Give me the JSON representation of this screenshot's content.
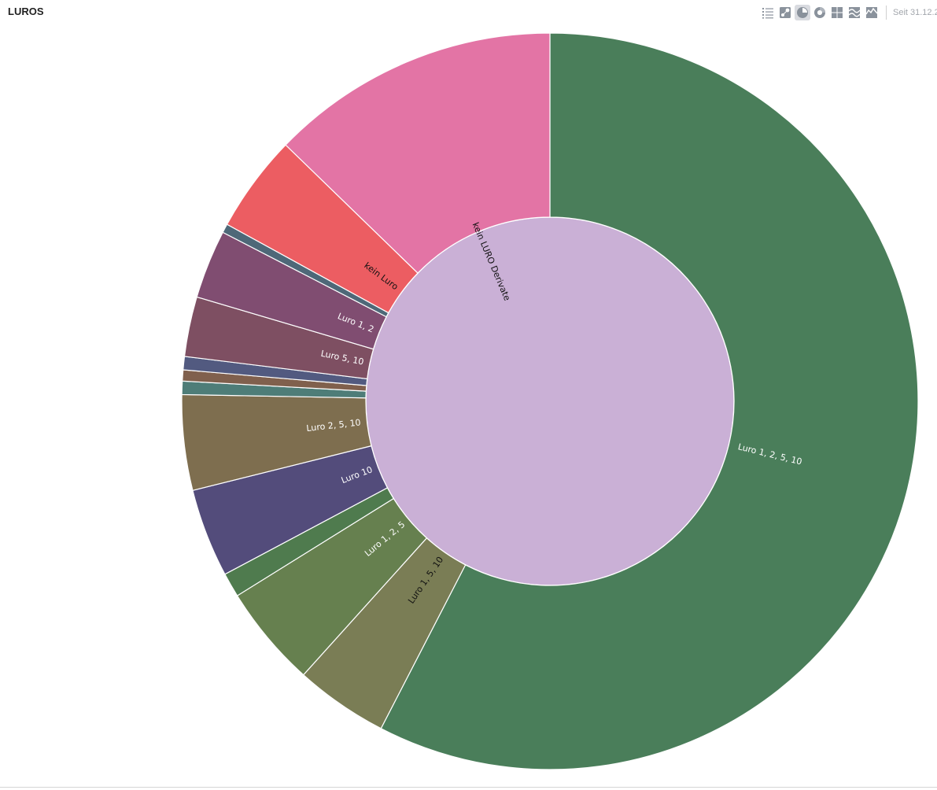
{
  "header": {
    "title": "LUROS",
    "since": "Seit 31.12.2",
    "toolbar": [
      {
        "icon": "list-icon",
        "active": false
      },
      {
        "icon": "scatter-icon",
        "active": false
      },
      {
        "icon": "pie-chart-icon",
        "active": true
      },
      {
        "icon": "donut-chart-icon",
        "active": false
      },
      {
        "icon": "treemap-icon",
        "active": false
      },
      {
        "icon": "stream-chart-icon",
        "active": false
      },
      {
        "icon": "area-chart-icon",
        "active": false
      }
    ]
  },
  "chart_data": {
    "type": "pie",
    "subtype": "sunburst",
    "inner_ring": [
      {
        "name": "",
        "value": 100,
        "color": "#cab0d6"
      }
    ],
    "outer_ring": [
      {
        "name": "Luro 1, 2, 5, 10",
        "value": 59.2,
        "color": "#4a7e5a",
        "label_color": "#ffffff"
      },
      {
        "name": "Luro 1, 5, 10",
        "value": 4.2,
        "color": "#7a7d55",
        "label_color": "#111111"
      },
      {
        "name": "Luro 1, 2, 5",
        "value": 4.6,
        "color": "#66804f",
        "label_color": "#ffffff"
      },
      {
        "name": "",
        "value": 1.1,
        "color": "#4f7b4e",
        "label_color": "#ffffff"
      },
      {
        "name": "Luro 10",
        "value": 4.0,
        "color": "#534c7b",
        "label_color": "#ffffff"
      },
      {
        "name": "Luro 2, 5, 10",
        "value": 4.3,
        "color": "#7e6e4f",
        "label_color": "#ffffff"
      },
      {
        "name": "",
        "value": 0.6,
        "color": "#4e7d78",
        "label_color": "#ffffff"
      },
      {
        "name": "",
        "value": 0.5,
        "color": "#80604d",
        "label_color": "#ffffff"
      },
      {
        "name": "",
        "value": 0.6,
        "color": "#525a80",
        "label_color": "#ffffff"
      },
      {
        "name": "Luro 5, 10",
        "value": 2.7,
        "color": "#7e4f62",
        "label_color": "#ffffff"
      },
      {
        "name": "Luro 1, 2",
        "value": 3.1,
        "color": "#804d71",
        "label_color": "#ffffff"
      },
      {
        "name": "",
        "value": 0.4,
        "color": "#4e6878",
        "label_color": "#ffffff"
      },
      {
        "name": "kein Luro",
        "value": 4.4,
        "color": "#ec5d62",
        "label_color": "#111111"
      },
      {
        "name": "kein LURO Derivate",
        "value": 13.1,
        "color": "#e374a5",
        "label_color": "#111111"
      }
    ]
  }
}
